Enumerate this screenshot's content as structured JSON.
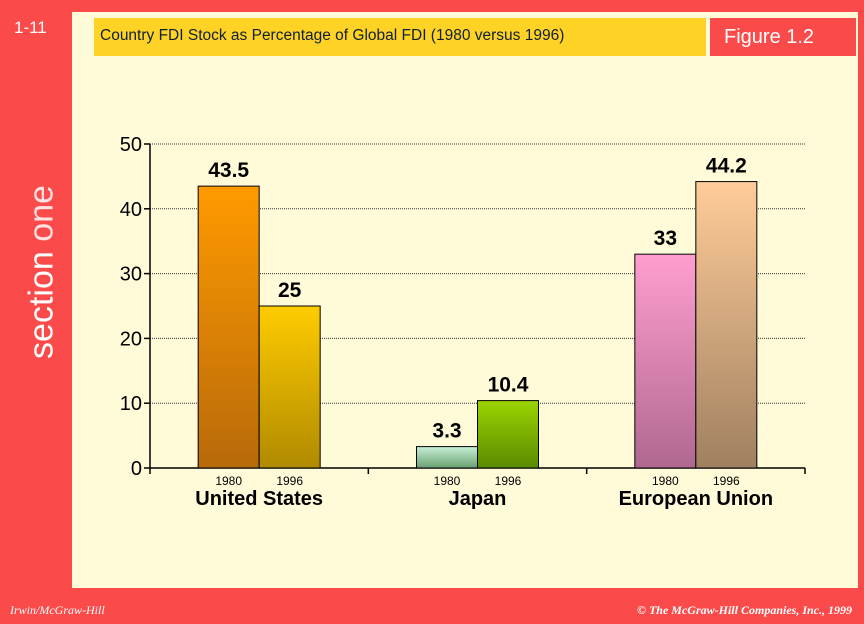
{
  "slide": {
    "number": "1-11",
    "section_label_pre": "section ",
    "section_label_post": "one"
  },
  "header": {
    "title": "Country FDI Stock as Percentage of Global FDI  (1980 versus 1996)",
    "figure_label": "Figure 1.2"
  },
  "footer": {
    "left": "Irwin/McGraw-Hill",
    "right": "© The McGraw-Hill Companies, Inc., 1999"
  },
  "colors": {
    "accent": "#fb4a4a",
    "panel": "#fffbd8",
    "header": "#ffd326"
  },
  "chart_data": {
    "type": "bar",
    "title": "Country FDI Stock as Percentage of Global FDI  (1980 versus 1996)",
    "categories": [
      "United States",
      "Japan",
      "European Union"
    ],
    "sub_categories": [
      "1980",
      "1996"
    ],
    "series": [
      {
        "name": "1980",
        "values": [
          43.5,
          3.3,
          33
        ]
      },
      {
        "name": "1996",
        "values": [
          25,
          10.4,
          44.2
        ]
      }
    ],
    "value_labels": [
      [
        "43.5",
        "25"
      ],
      [
        "3.3",
        "10.4"
      ],
      [
        "33",
        "44.2"
      ]
    ],
    "ylim": [
      0,
      50
    ],
    "yticks": [
      0,
      10,
      20,
      30,
      40,
      50
    ],
    "grid": true,
    "bar_colors": [
      [
        [
          "#ff9a00",
          "#b86a0a"
        ],
        [
          "#ffcc00",
          "#b08a00"
        ]
      ],
      [
        [
          "#c8f0d8",
          "#6aa070"
        ],
        [
          "#9ad400",
          "#5a8a00"
        ]
      ],
      [
        [
          "#ff9ed0",
          "#b06890"
        ],
        [
          "#ffcc99",
          "#a08060"
        ]
      ]
    ]
  }
}
